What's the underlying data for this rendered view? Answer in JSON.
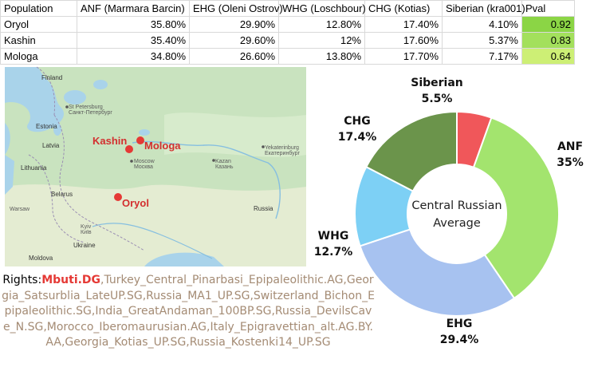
{
  "table": {
    "headers": [
      "Population",
      "ANF (Marmara Barcin)",
      "EHG (Oleni Ostrov)",
      "WHG (Loschbour)",
      "CHG (Kotias)",
      "Siberian (kra001)",
      "Pval"
    ],
    "rows": [
      {
        "cells": [
          "Oryol",
          "35.80%",
          "29.90%",
          "12.80%",
          "17.40%",
          "4.10%",
          "0.92"
        ],
        "pval_color": "#8bd545"
      },
      {
        "cells": [
          "Kashin",
          "35.40%",
          "29.60%",
          "12%",
          "17.60%",
          "5.37%",
          "0.83"
        ],
        "pval_color": "#a3e05c"
      },
      {
        "cells": [
          "Mologa",
          "34.80%",
          "26.60%",
          "13.80%",
          "17.70%",
          "7.17%",
          "0.64"
        ],
        "pval_color": "#cdef75"
      }
    ]
  },
  "map": {
    "cities": [
      {
        "name": "Kashin"
      },
      {
        "name": "Mologa"
      },
      {
        "name": "Oryol"
      }
    ],
    "labels": {
      "finland": "Finland",
      "st_petersburg": "St Petersburg",
      "st_petersburg_ru": "Санкт-Петербург",
      "estonia": "Estonia",
      "latvia": "Latvia",
      "lithuania": "Lithuania",
      "belarus": "Belarus",
      "warsaw": "Warsaw",
      "kyiv": "Kyiv",
      "kyiv_ua": "Київ",
      "ukraine": "Ukraine",
      "moldova": "Moldova",
      "moscow": "Moscow",
      "moscow_ru": "Москва",
      "kazan": "Kazan",
      "kazan_ru": "Казань",
      "yekaterinburg": "Yekaterinburg",
      "yekaterinburg_ru": "Екатеринбург",
      "russia": "Russia"
    }
  },
  "rights": {
    "lead": "Rights:",
    "highlight": "Mbuti.DG",
    "rest": ",Turkey_Central_Pinarbasi_Epipaleolithic.AG,Georgia_Satsurblia_LateUP.SG,Russia_MA1_UP.SG,Switzerland_Bichon_Epipaleolithic.SG,India_GreatAndaman_100BP.SG,Russia_DevilsCave_N.SG,Morocco_Iberomaurusian.AG,Italy_Epigravettian_alt.AG.BY.AA,Georgia_Kotias_UP.SG,Russia_Kostenki14_UP.SG"
  },
  "chart_data": {
    "type": "pie",
    "donut": true,
    "center_label_lines": [
      "Central Russian",
      "Average"
    ],
    "categories": [
      "Siberian",
      "ANF",
      "EHG",
      "WHG",
      "CHG"
    ],
    "values": [
      5.5,
      35,
      29.4,
      12.7,
      17.4
    ],
    "value_labels": [
      "5.5%",
      "35%",
      "29.4%",
      "12.7%",
      "17.4%"
    ],
    "colors": [
      "#f0575a",
      "#a3e46e",
      "#a7c2f0",
      "#7dd0f5",
      "#6b944b"
    ]
  }
}
